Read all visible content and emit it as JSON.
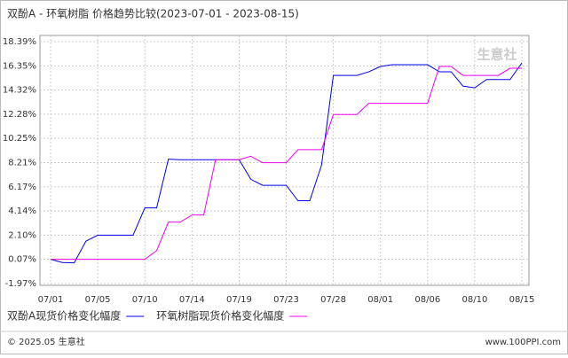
{
  "chart_data": {
    "type": "line",
    "title": "双酚A - 环氧树脂 价格趋势比较(2023-07-01 - 2023-08-15)",
    "watermark": "生意社",
    "categories": [
      "07/01",
      null,
      null,
      null,
      "07/05",
      null,
      null,
      null,
      "07/10",
      null,
      null,
      null,
      "07/14",
      null,
      null,
      null,
      "07/19",
      null,
      null,
      null,
      "07/23",
      null,
      null,
      null,
      "07/28",
      null,
      null,
      null,
      "08/01",
      null,
      null,
      null,
      "08/06",
      null,
      null,
      null,
      "08/10",
      null,
      null,
      null,
      "08/15"
    ],
    "series": [
      {
        "name": "双酚A现货价格变化幅度",
        "color": "#0000ee",
        "values": [
          0.07,
          -0.2,
          -0.23,
          1.6,
          2.1,
          2.1,
          2.1,
          2.1,
          4.4,
          4.4,
          8.5,
          8.45,
          8.45,
          8.45,
          8.45,
          8.45,
          8.45,
          6.8,
          6.3,
          6.3,
          6.3,
          5.0,
          5.0,
          8.0,
          15.55,
          15.55,
          15.55,
          15.85,
          16.3,
          16.45,
          16.45,
          16.45,
          16.45,
          15.85,
          15.85,
          14.65,
          14.5,
          15.2,
          15.2,
          15.2,
          16.6
        ]
      },
      {
        "name": "环氧树脂现货价格变化幅度",
        "color": "#ee00ee",
        "values": [
          0.07,
          0.07,
          0.07,
          0.07,
          0.07,
          0.07,
          0.07,
          0.07,
          0.07,
          0.8,
          3.2,
          3.2,
          3.8,
          3.8,
          8.45,
          8.45,
          8.45,
          8.75,
          8.2,
          8.2,
          8.2,
          9.3,
          9.3,
          9.3,
          12.26,
          12.26,
          12.26,
          13.2,
          13.2,
          13.2,
          13.2,
          13.2,
          13.2,
          16.3,
          16.3,
          15.55,
          15.55,
          15.55,
          15.55,
          16.15,
          16.15
        ]
      }
    ],
    "ylim": [
      -1.97,
      18.39
    ],
    "yticks": [
      {
        "value": -1.97,
        "label": "-1.97%"
      },
      {
        "value": 0.07,
        "label": "0.07%"
      },
      {
        "value": 2.1,
        "label": "2.10%"
      },
      {
        "value": 4.14,
        "label": "4.14%"
      },
      {
        "value": 6.17,
        "label": "6.17%"
      },
      {
        "value": 8.21,
        "label": "8.21%"
      },
      {
        "value": 10.25,
        "label": "10.25%"
      },
      {
        "value": 12.28,
        "label": "12.28%"
      },
      {
        "value": 14.32,
        "label": "14.32%"
      },
      {
        "value": 16.35,
        "label": "16.35%"
      },
      {
        "value": 18.39,
        "label": "18.39%"
      }
    ],
    "grid": true,
    "footer_left": "© 2025.05 生意社",
    "footer_right": "www.100PPI.com"
  }
}
